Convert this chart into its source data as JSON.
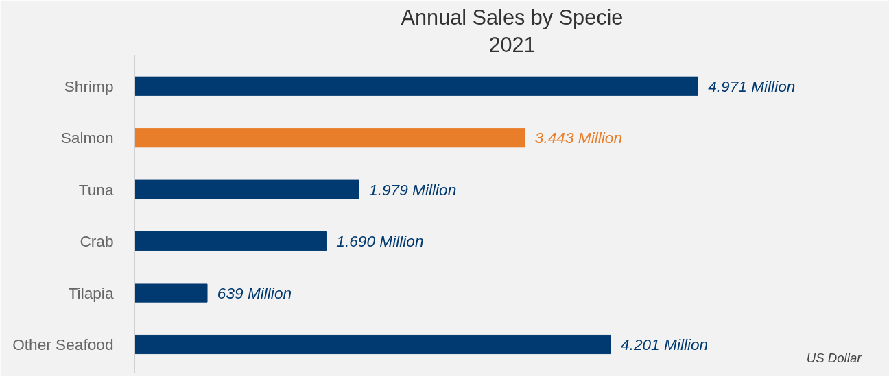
{
  "chart_data": {
    "type": "bar",
    "orientation": "horizontal",
    "title": "Annual Sales by Specie",
    "subtitle": "2021",
    "categories": [
      "Shrimp",
      "Salmon",
      "Tuna",
      "Crab",
      "Tilapia",
      "Other Seafood"
    ],
    "values": [
      4971,
      3443,
      1979,
      1690,
      639,
      4201
    ],
    "colors": [
      "#003a70",
      "#e87d2a",
      "#003a70",
      "#003a70",
      "#003a70",
      "#003a70"
    ],
    "value_labels": [
      "4.971 Million",
      "3.443 Million",
      "1.979 Million",
      "1.690 Million",
      "639 Million",
      "4.201 Million"
    ],
    "annotations": [
      "US Dollar"
    ],
    "grid": false
  }
}
